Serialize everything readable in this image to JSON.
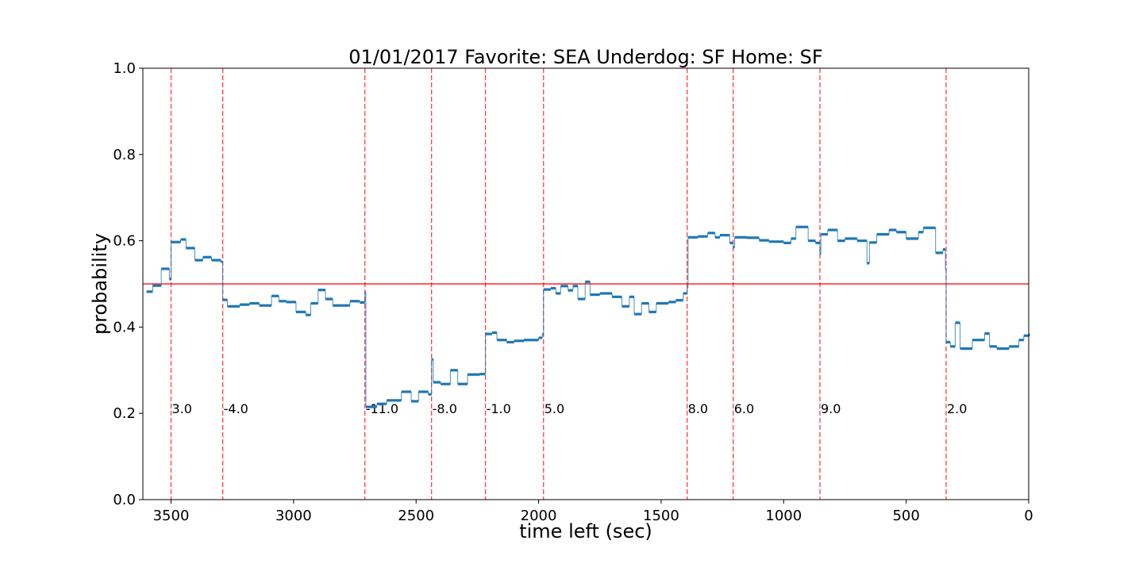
{
  "chart_data": {
    "type": "step",
    "title": "01/01/2017 Favorite: SEA Underdog: SF Home: SF",
    "xlabel": "time left (sec)",
    "ylabel": "probability",
    "color": "#1f77b4",
    "x": [
      3600,
      3575,
      3540,
      3507,
      3500,
      3461,
      3439,
      3403,
      3370,
      3335,
      3296,
      3289,
      3270,
      3220,
      3180,
      3140,
      3090,
      3060,
      3030,
      2990,
      2950,
      2930,
      2900,
      2870,
      2840,
      2800,
      2770,
      2730,
      2709,
      2705,
      2660,
      2620,
      2560,
      2520,
      2490,
      2450,
      2437,
      2430,
      2400,
      2360,
      2330,
      2290,
      2240,
      2217,
      2190,
      2170,
      2130,
      2100,
      2060,
      2000,
      1985,
      1980,
      1950,
      1930,
      1910,
      1880,
      1860,
      1840,
      1810,
      1790,
      1750,
      1700,
      1660,
      1630,
      1610,
      1580,
      1550,
      1520,
      1470,
      1440,
      1410,
      1394,
      1390,
      1350,
      1310,
      1280,
      1260,
      1220,
      1206,
      1200,
      1150,
      1100,
      1060,
      1000,
      970,
      950,
      900,
      870,
      852,
      848,
      820,
      780,
      750,
      700,
      660,
      650,
      620,
      570,
      540,
      500,
      450,
      430,
      380,
      350,
      340,
      337,
      320,
      300,
      280,
      230,
      180,
      160,
      130,
      80,
      40,
      20,
      0
    ],
    "values": [
      0.482,
      0.496,
      0.535,
      0.511,
      0.597,
      0.603,
      0.583,
      0.555,
      0.562,
      0.555,
      0.551,
      0.463,
      0.448,
      0.452,
      0.455,
      0.45,
      0.472,
      0.46,
      0.458,
      0.435,
      0.428,
      0.455,
      0.486,
      0.465,
      0.45,
      0.45,
      0.46,
      0.457,
      0.48,
      0.215,
      0.222,
      0.23,
      0.25,
      0.228,
      0.25,
      0.244,
      0.325,
      0.272,
      0.268,
      0.3,
      0.268,
      0.29,
      0.291,
      0.384,
      0.387,
      0.37,
      0.365,
      0.368,
      0.37,
      0.375,
      0.383,
      0.487,
      0.49,
      0.478,
      0.495,
      0.485,
      0.495,
      0.465,
      0.505,
      0.475,
      0.478,
      0.47,
      0.448,
      0.47,
      0.43,
      0.455,
      0.435,
      0.455,
      0.458,
      0.462,
      0.478,
      0.492,
      0.608,
      0.61,
      0.618,
      0.608,
      0.613,
      0.595,
      0.585,
      0.608,
      0.607,
      0.601,
      0.598,
      0.595,
      0.605,
      0.632,
      0.6,
      0.595,
      0.57,
      0.615,
      0.625,
      0.6,
      0.605,
      0.6,
      0.548,
      0.596,
      0.615,
      0.625,
      0.62,
      0.605,
      0.62,
      0.63,
      0.572,
      0.58,
      0.535,
      0.365,
      0.355,
      0.41,
      0.35,
      0.37,
      0.385,
      0.355,
      0.35,
      0.355,
      0.37,
      0.38,
      0.382
    ],
    "xlim": [
      3615,
      0
    ],
    "ylim": [
      0,
      1
    ],
    "xticks": [
      3500,
      3000,
      2500,
      2000,
      1500,
      1000,
      500,
      0
    ],
    "yticks": [
      {
        "value": 0,
        "label": "0.0"
      },
      0.2,
      0.4,
      0.6,
      0.8,
      {
        "value": 1,
        "label": "1.0"
      }
    ],
    "hline": 0.5,
    "event_color": "#ff0000",
    "events": {
      "x": [
        3500,
        3289,
        2709,
        2437,
        2217,
        1980,
        1394,
        1206,
        852,
        337
      ],
      "labels": [
        "3.0",
        "-4.0",
        "-11.0",
        "-8.0",
        "-1.0",
        "5.0",
        "8.0",
        "6.0",
        "9.0",
        "2.0"
      ]
    }
  }
}
